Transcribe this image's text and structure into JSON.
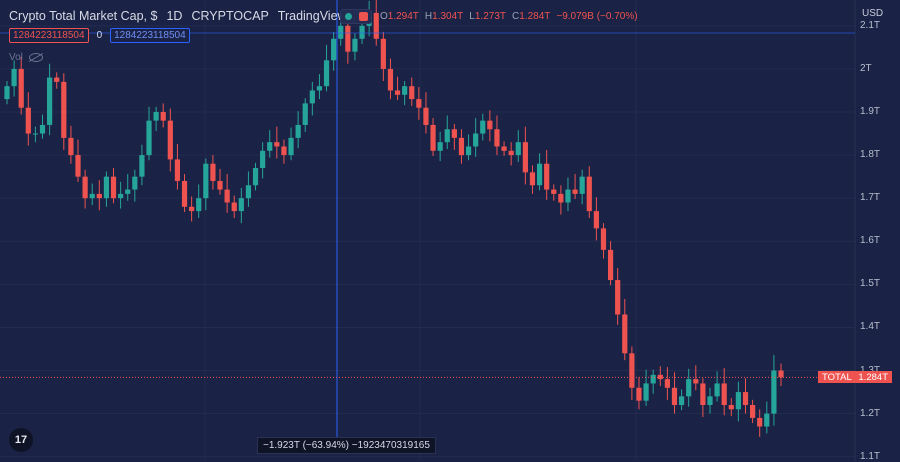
{
  "header": {
    "title": "Crypto Total Market Cap, $",
    "interval": "1D",
    "exchange": "CRYPTOCAP",
    "source": "TradingView",
    "open_key": "O",
    "open": "1.294T",
    "high_key": "H",
    "high": "1.304T",
    "low_key": "L",
    "low": "1.273T",
    "close_key": "C",
    "close": "1.284T",
    "change": "−9.079B (−0.70%)"
  },
  "readouts": {
    "value_red": "1284223118504",
    "zero": "0",
    "value_blue": "1284223118504",
    "vol_label": "Vol"
  },
  "axis": {
    "currency": "USD",
    "last_label": "TOTAL",
    "last_value": "1.284T"
  },
  "measure_label": "−1.923T (−63.94%) −1923470319165",
  "logo_text": "17",
  "colors": {
    "up": "#26a69a",
    "down": "#ef5350",
    "background": "#1a2245",
    "grid": "#232c50",
    "crosshair": "#2962ff"
  },
  "chart_data": {
    "type": "candlestick",
    "y_unit": "T",
    "ylim": [
      1.09,
      2.16
    ],
    "y_ticks": [
      "2.1T",
      "2T",
      "1.9T",
      "1.8T",
      "1.7T",
      "1.6T",
      "1.5T",
      "1.4T",
      "1.3T",
      "1.2T",
      "1.1T"
    ],
    "y_tick_values": [
      2.1,
      2.0,
      1.9,
      1.8,
      1.7,
      1.6,
      1.5,
      1.4,
      1.3,
      1.2,
      1.1
    ],
    "last_price": 1.284,
    "closes": [
      1.96,
      2.0,
      1.91,
      1.85,
      1.85,
      1.87,
      1.98,
      1.97,
      1.84,
      1.8,
      1.75,
      1.7,
      1.71,
      1.7,
      1.75,
      1.7,
      1.71,
      1.72,
      1.75,
      1.8,
      1.88,
      1.9,
      1.88,
      1.79,
      1.74,
      1.68,
      1.67,
      1.7,
      1.78,
      1.74,
      1.72,
      1.69,
      1.67,
      1.7,
      1.73,
      1.77,
      1.81,
      1.83,
      1.82,
      1.8,
      1.84,
      1.87,
      1.92,
      1.95,
      1.96,
      2.02,
      2.07,
      2.1,
      2.04,
      2.07,
      2.1,
      2.13,
      2.07,
      2.0,
      1.95,
      1.94,
      1.96,
      1.93,
      1.91,
      1.87,
      1.81,
      1.83,
      1.86,
      1.84,
      1.8,
      1.82,
      1.85,
      1.88,
      1.86,
      1.82,
      1.81,
      1.8,
      1.83,
      1.76,
      1.73,
      1.78,
      1.72,
      1.71,
      1.69,
      1.72,
      1.71,
      1.75,
      1.67,
      1.63,
      1.58,
      1.51,
      1.43,
      1.34,
      1.26,
      1.23,
      1.27,
      1.29,
      1.28,
      1.26,
      1.22,
      1.24,
      1.28,
      1.27,
      1.22,
      1.24,
      1.27,
      1.22,
      1.21,
      1.25,
      1.22,
      1.19,
      1.17,
      1.2,
      1.3,
      1.284
    ]
  }
}
